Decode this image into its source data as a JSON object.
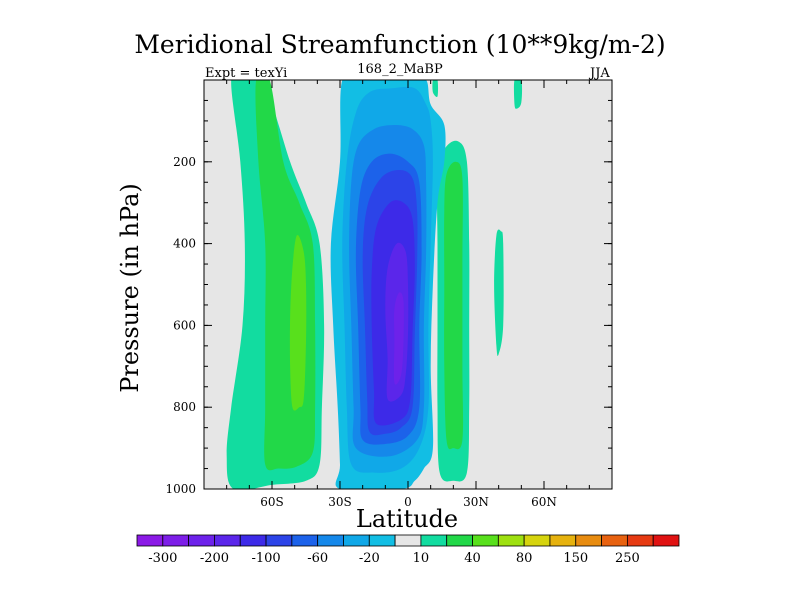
{
  "chart_data": {
    "type": "heatmap",
    "title": "Meridional Streamfunction (10**9kg/m-2)",
    "subtitle_left": "Expt = texYi",
    "subtitle_center": "168_2_MaBP",
    "subtitle_right": "JJA",
    "xlabel": "Latitude",
    "ylabel": "Pressure (in hPa)",
    "xlim": [
      -90,
      90
    ],
    "ylim": [
      1000,
      0
    ],
    "x_ticks": [
      {
        "value": -60,
        "label": "60S"
      },
      {
        "value": -30,
        "label": "30S"
      },
      {
        "value": 0,
        "label": "0"
      },
      {
        "value": 30,
        "label": "30N"
      },
      {
        "value": 60,
        "label": "60N"
      }
    ],
    "y_ticks": [
      {
        "value": 200,
        "label": "200"
      },
      {
        "value": 400,
        "label": "400"
      },
      {
        "value": 600,
        "label": "600"
      },
      {
        "value": 800,
        "label": "800"
      },
      {
        "value": 1000,
        "label": "1000"
      }
    ],
    "colorbar": {
      "colors": [
        "#8b1ae6",
        "#7d1ee8",
        "#6d22ea",
        "#5b26ea",
        "#3d2ae8",
        "#2c44e8",
        "#1c62ea",
        "#1588ea",
        "#10a8e8",
        "#12bee4",
        "#e6e6e6",
        "#12dca0",
        "#22d848",
        "#58e01c",
        "#9ee010",
        "#d6d40e",
        "#e6b20e",
        "#e88c10",
        "#e86210",
        "#e63a12",
        "#e01212"
      ],
      "labels": [
        "-300",
        "-200",
        "-100",
        "-60",
        "-20",
        "10",
        "40",
        "80",
        "150",
        "250"
      ]
    },
    "contour_regions": [
      {
        "level": 10,
        "color": "#12dca0",
        "points": [
          [
            -77,
            1000
          ],
          [
            -80,
            920
          ],
          [
            -78,
            800
          ],
          [
            -73,
            600
          ],
          [
            -72,
            400
          ],
          [
            -74,
            200
          ],
          [
            -78,
            0
          ],
          [
            -72,
            0
          ],
          [
            -64,
            0
          ],
          [
            -52,
            200
          ],
          [
            -45,
            300
          ],
          [
            -39,
            400
          ],
          [
            -37,
            600
          ],
          [
            -38,
            800
          ],
          [
            -39,
            940
          ],
          [
            -45,
            980
          ],
          [
            -60,
            990
          ]
        ]
      },
      {
        "level": 40,
        "color": "#22d848",
        "points": [
          [
            -63,
            940
          ],
          [
            -63,
            800
          ],
          [
            -63,
            600
          ],
          [
            -63,
            400
          ],
          [
            -66,
            200
          ],
          [
            -67,
            0
          ],
          [
            -61,
            0
          ],
          [
            -55,
            200
          ],
          [
            -48,
            300
          ],
          [
            -42,
            400
          ],
          [
            -41,
            600
          ],
          [
            -41,
            800
          ],
          [
            -42,
            910
          ],
          [
            -49,
            945
          ],
          [
            -57,
            950
          ]
        ]
      },
      {
        "level": 80,
        "color": "#58e01c",
        "points": [
          [
            -51,
            800
          ],
          [
            -52,
            700
          ],
          [
            -52,
            580
          ],
          [
            -51,
            460
          ],
          [
            -49,
            380
          ],
          [
            -46,
            420
          ],
          [
            -45,
            500
          ],
          [
            -45,
            640
          ],
          [
            -46,
            780
          ],
          [
            -48,
            800
          ]
        ]
      },
      {
        "level": 10,
        "color": "#12dca0",
        "points": [
          [
            14,
            960
          ],
          [
            13,
            800
          ],
          [
            13,
            600
          ],
          [
            13,
            400
          ],
          [
            13,
            240
          ],
          [
            16,
            170
          ],
          [
            22,
            150
          ],
          [
            26,
            200
          ],
          [
            27,
            400
          ],
          [
            27,
            600
          ],
          [
            27,
            800
          ],
          [
            26,
            960
          ],
          [
            20,
            980
          ]
        ]
      },
      {
        "level": 40,
        "color": "#22d848",
        "points": [
          [
            17,
            880
          ],
          [
            16,
            700
          ],
          [
            16,
            500
          ],
          [
            16,
            320
          ],
          [
            17,
            230
          ],
          [
            21,
            200
          ],
          [
            24,
            240
          ],
          [
            24,
            450
          ],
          [
            24,
            700
          ],
          [
            24,
            880
          ],
          [
            20,
            900
          ]
        ]
      },
      {
        "level": 10,
        "color": "#12dca0",
        "points": [
          [
            39,
            380
          ],
          [
            38,
            500
          ],
          [
            39,
            650
          ],
          [
            40,
            670
          ],
          [
            42,
            600
          ],
          [
            42,
            400
          ],
          [
            41,
            370
          ]
        ]
      },
      {
        "level": 10,
        "color": "#12dca0",
        "points": [
          [
            47,
            0
          ],
          [
            47,
            60
          ],
          [
            48,
            70
          ],
          [
            50,
            55
          ],
          [
            50,
            0
          ]
        ]
      },
      {
        "level": -20,
        "color": "#12bee4",
        "points": [
          [
            -30,
            1000
          ],
          [
            -30,
            940
          ],
          [
            -31,
            800
          ],
          [
            -33,
            600
          ],
          [
            -34,
            400
          ],
          [
            -30,
            200
          ],
          [
            -29,
            0
          ],
          [
            -19,
            0
          ],
          [
            -9,
            0
          ],
          [
            1,
            0
          ],
          [
            8,
            0
          ],
          [
            10,
            60
          ],
          [
            16,
            110
          ],
          [
            16,
            200
          ],
          [
            13,
            300
          ],
          [
            11,
            500
          ],
          [
            10,
            700
          ],
          [
            11,
            900
          ],
          [
            7,
            950
          ],
          [
            3,
            980
          ],
          [
            -3,
            1000
          ]
        ]
      },
      {
        "level": -60,
        "color": "#10a8e8",
        "points": [
          [
            -25,
            940
          ],
          [
            -27,
            800
          ],
          [
            -28,
            600
          ],
          [
            -29,
            400
          ],
          [
            -27,
            200
          ],
          [
            -23,
            80
          ],
          [
            -17,
            30
          ],
          [
            -7,
            20
          ],
          [
            3,
            20
          ],
          [
            8,
            60
          ],
          [
            10,
            100
          ],
          [
            11,
            200
          ],
          [
            10,
            400
          ],
          [
            9,
            600
          ],
          [
            9,
            800
          ],
          [
            5,
            900
          ],
          [
            -3,
            950
          ],
          [
            -15,
            960
          ]
        ]
      },
      {
        "level": -100,
        "color": "#1588ea",
        "points": [
          [
            -23,
            900
          ],
          [
            -24,
            800
          ],
          [
            -25,
            600
          ],
          [
            -26,
            420
          ],
          [
            -25,
            250
          ],
          [
            -22,
            160
          ],
          [
            -15,
            120
          ],
          [
            -6,
            110
          ],
          [
            2,
            120
          ],
          [
            7,
            160
          ],
          [
            8,
            250
          ],
          [
            8,
            420
          ],
          [
            7,
            600
          ],
          [
            7,
            800
          ],
          [
            4,
            880
          ],
          [
            -8,
            920
          ]
        ]
      },
      {
        "level": -140,
        "color": "#1c62ea",
        "points": [
          [
            -20,
            880
          ],
          [
            -21,
            800
          ],
          [
            -22,
            600
          ],
          [
            -23,
            420
          ],
          [
            -21,
            270
          ],
          [
            -16,
            200
          ],
          [
            -8,
            180
          ],
          [
            0,
            200
          ],
          [
            5,
            250
          ],
          [
            6,
            420
          ],
          [
            5,
            600
          ],
          [
            5,
            800
          ],
          [
            0,
            870
          ],
          [
            -10,
            890
          ]
        ]
      },
      {
        "level": -180,
        "color": "#2c44e8",
        "points": [
          [
            -17,
            860
          ],
          [
            -18,
            780
          ],
          [
            -19,
            600
          ],
          [
            -20,
            430
          ],
          [
            -18,
            310
          ],
          [
            -12,
            240
          ],
          [
            -4,
            220
          ],
          [
            2,
            240
          ],
          [
            4,
            320
          ],
          [
            4,
            450
          ],
          [
            3,
            620
          ],
          [
            2,
            800
          ],
          [
            -3,
            850
          ],
          [
            -10,
            865
          ]
        ]
      },
      {
        "level": -220,
        "color": "#3d2ae8",
        "points": [
          [
            -14,
            840
          ],
          [
            -15,
            760
          ],
          [
            -16,
            600
          ],
          [
            -16,
            470
          ],
          [
            -14,
            360
          ],
          [
            -8,
            300
          ],
          [
            -2,
            300
          ],
          [
            2,
            340
          ],
          [
            3,
            460
          ],
          [
            2,
            620
          ],
          [
            1,
            780
          ],
          [
            -3,
            830
          ]
        ]
      },
      {
        "level": -260,
        "color": "#5b26ea",
        "points": [
          [
            -9,
            780
          ],
          [
            -9,
            680
          ],
          [
            -10,
            560
          ],
          [
            -9,
            460
          ],
          [
            -5,
            400
          ],
          [
            -1,
            420
          ],
          [
            0,
            500
          ],
          [
            0,
            620
          ],
          [
            -1,
            720
          ],
          [
            -3,
            770
          ]
        ]
      },
      {
        "level": -300,
        "color": "#6d22ea",
        "points": [
          [
            -6,
            740
          ],
          [
            -6,
            640
          ],
          [
            -6,
            560
          ],
          [
            -4,
            520
          ],
          [
            -2,
            540
          ],
          [
            -2,
            640
          ],
          [
            -3,
            720
          ]
        ]
      },
      {
        "level": 10,
        "color": "#12dca0",
        "points": [
          [
            11,
            0
          ],
          [
            11,
            30
          ],
          [
            13,
            40
          ],
          [
            13,
            0
          ]
        ]
      }
    ],
    "background_color": "#e6e6e6"
  }
}
